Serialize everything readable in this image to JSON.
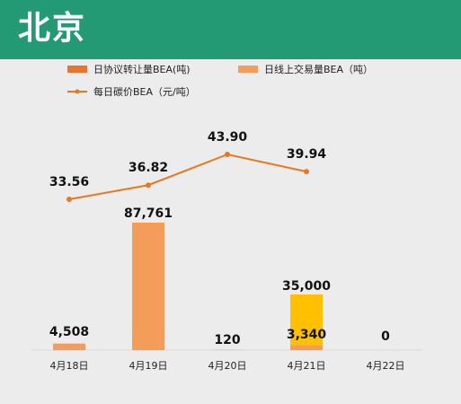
{
  "page": {
    "title": "北京"
  },
  "colors": {
    "header_bg": "#249a74",
    "protocol_bar": "#e8752c",
    "online_bar": "#f49c5a",
    "highlight_bar": "#ffc000",
    "price_line": "#e8781e"
  },
  "chart_data": {
    "type": "bar",
    "categories": [
      "4月18日",
      "4月19日",
      "4月20日",
      "4月21日",
      "4月22日"
    ],
    "series": [
      {
        "name": "日协议转让量BEA(吨)",
        "kind": "bar",
        "values": [
          0,
          0,
          0,
          35000,
          0
        ]
      },
      {
        "name": "日线上交易量BEA（吨）",
        "kind": "bar",
        "values": [
          4508,
          87761,
          120,
          3340,
          0
        ]
      },
      {
        "name": "每日碳价BEA（元/吨）",
        "kind": "line",
        "values": [
          33.56,
          36.82,
          43.9,
          39.94,
          null
        ]
      }
    ],
    "bar_labels": [
      "4,508",
      "87,761",
      "120",
      "3,340",
      "0"
    ],
    "highlight_label": "35,000",
    "price_labels": [
      "33.56",
      "36.82",
      "43.90",
      "39.94"
    ],
    "legend_position": "top",
    "grid": false,
    "xlabel": "",
    "ylabel": ""
  }
}
